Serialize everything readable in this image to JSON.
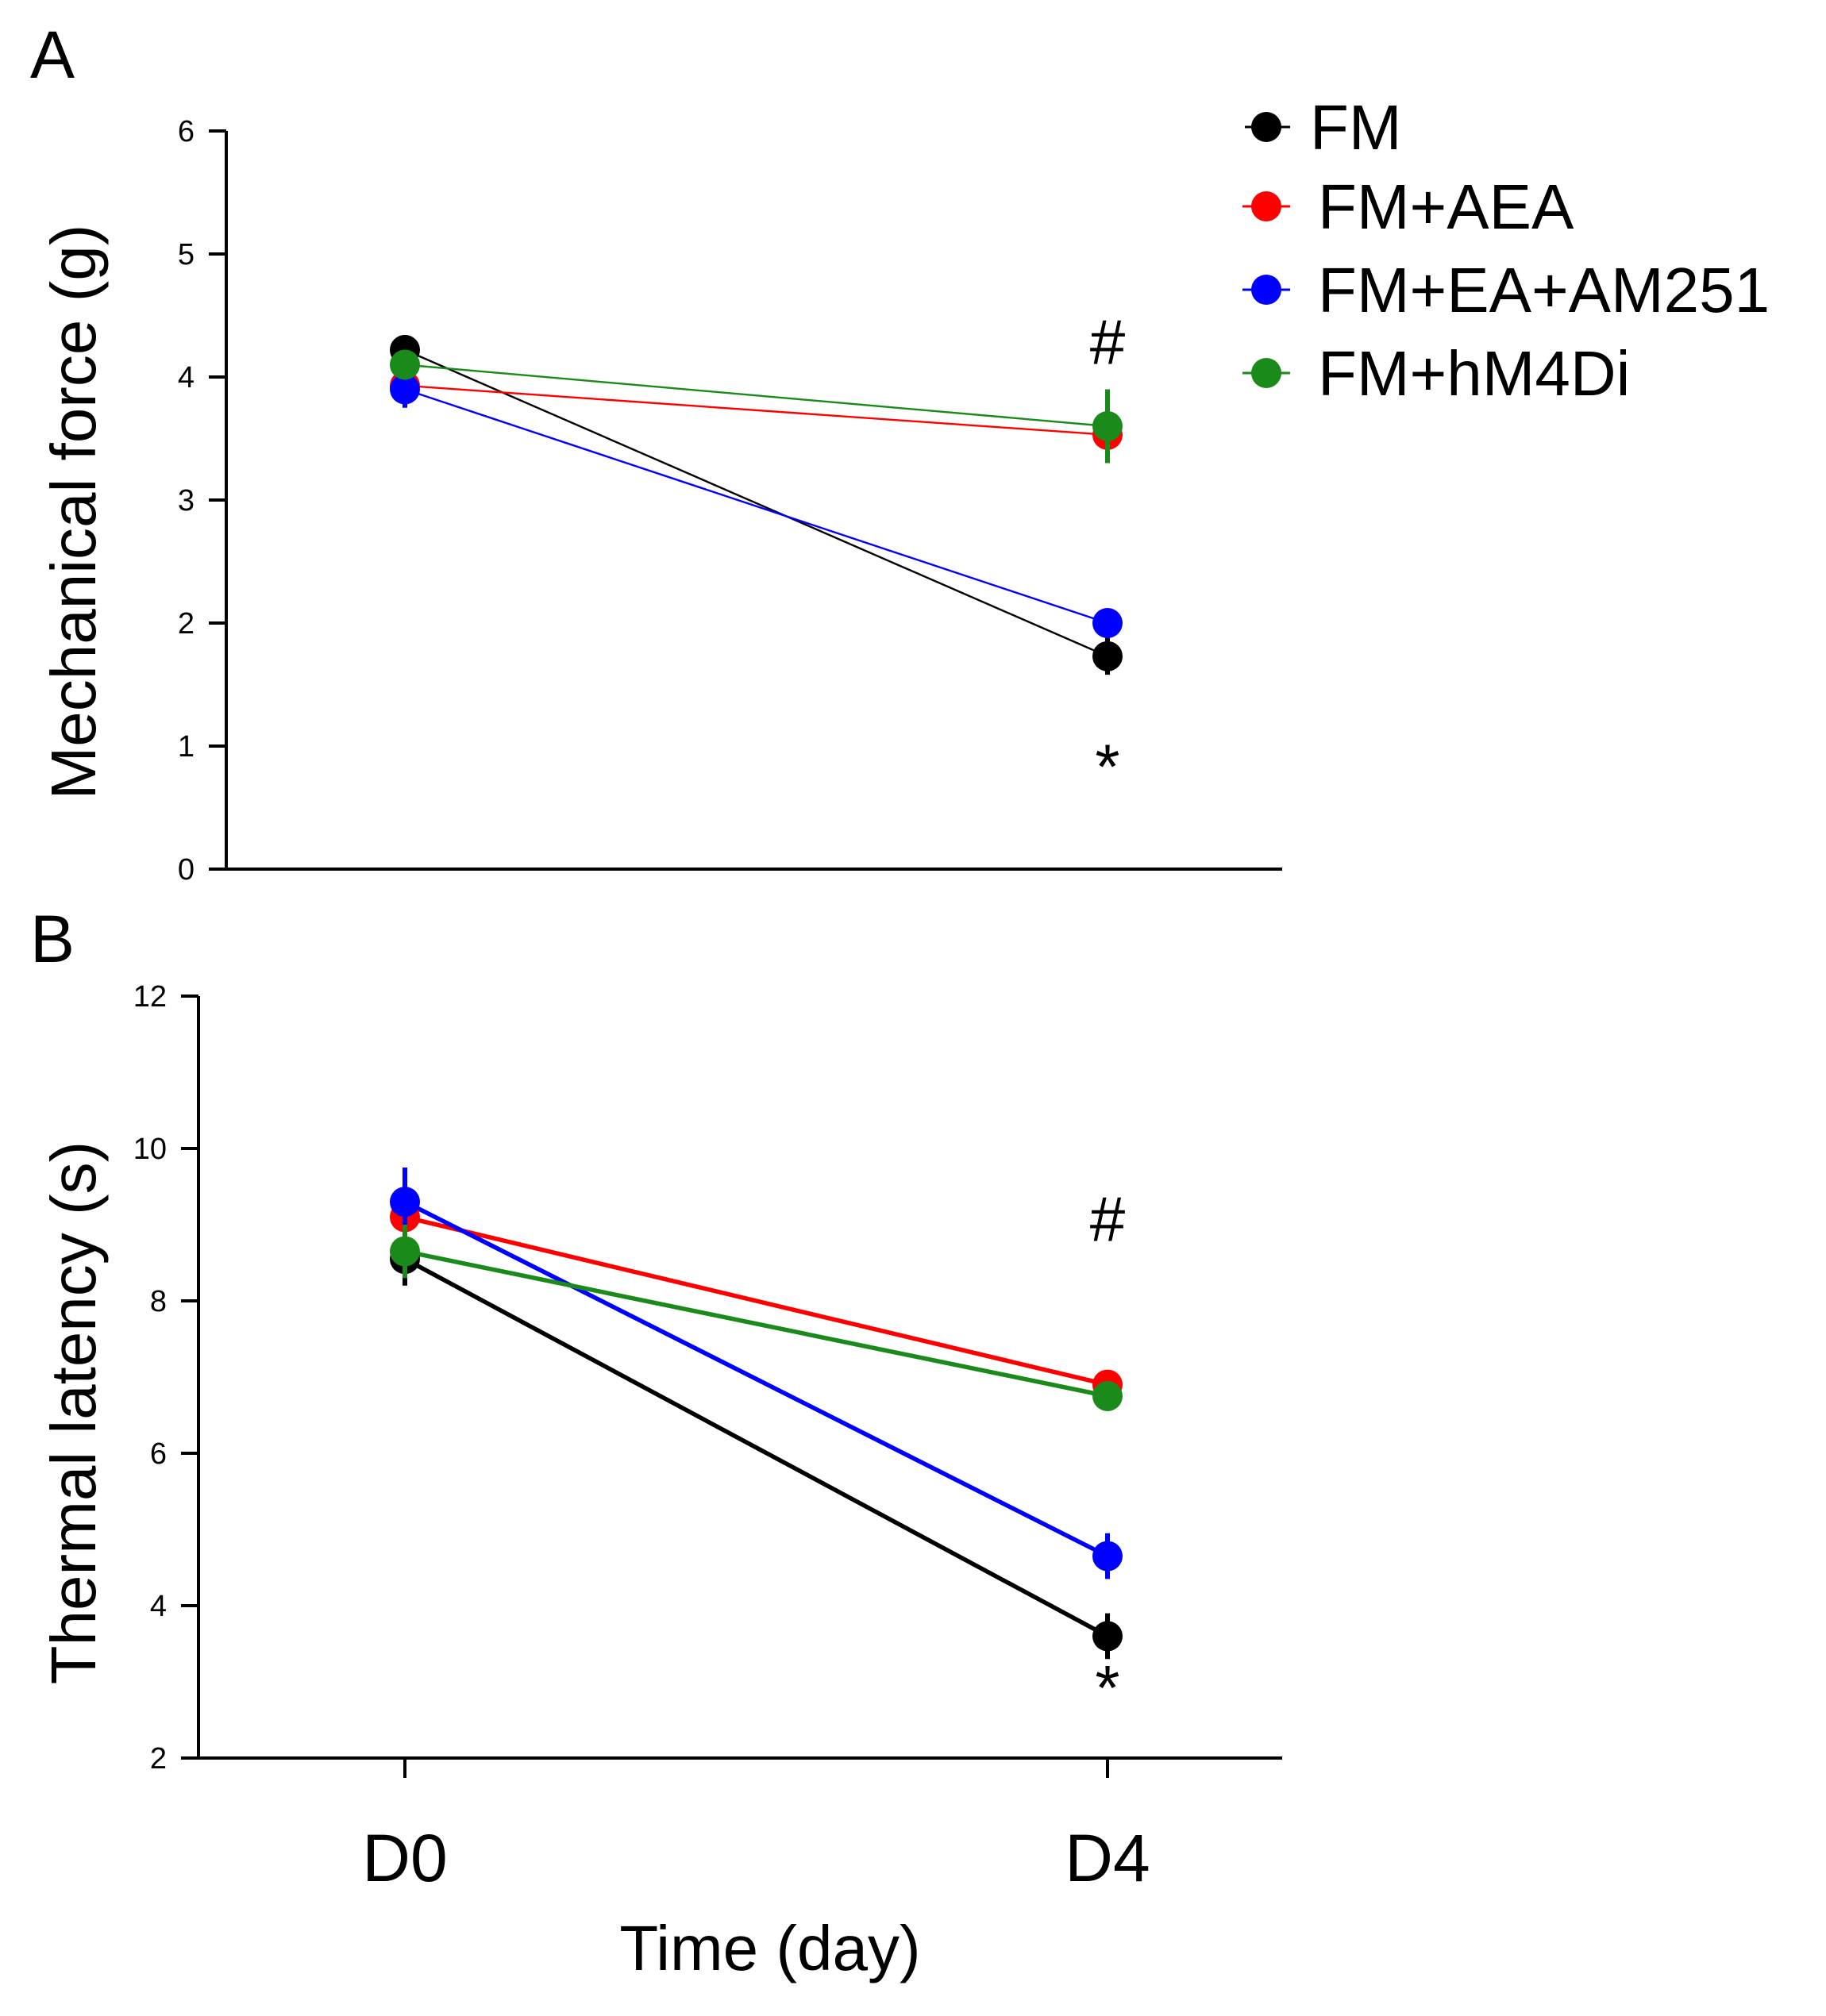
{
  "legend": [
    {
      "label": "FM",
      "color": "#000000"
    },
    {
      "label": "FM+AEA",
      "color": "#ff0000"
    },
    {
      "label": "FM+EA+AM251",
      "color": "#0000ff"
    },
    {
      "label": "FM+hM4Di",
      "color": "#1a8a1a"
    }
  ],
  "xlabel": "Time (day)",
  "chart_data": [
    {
      "type": "line",
      "panel": "A",
      "ylabel": "Mechanical force (g)",
      "categories": [
        "D0",
        "D4"
      ],
      "ylim": [
        0,
        6
      ],
      "yticks": [
        "0",
        "1",
        "2",
        "3",
        "4",
        "5",
        "6"
      ],
      "annotations": [
        {
          "text": "#",
          "category": "D4",
          "y": 4.3
        },
        {
          "text": "*",
          "category": "D4",
          "y": 0.85
        }
      ],
      "series": [
        {
          "name": "FM",
          "color": "#000000",
          "values": [
            4.22,
            1.73
          ],
          "errors": [
            0.08,
            0.15
          ]
        },
        {
          "name": "FM+AEA",
          "color": "#ff0000",
          "values": [
            3.93,
            3.53
          ],
          "errors": [
            0.06,
            0.2
          ]
        },
        {
          "name": "FM+EA+AM251",
          "color": "#0000ff",
          "values": [
            3.9,
            2.0
          ],
          "errors": [
            0.15,
            0.1
          ]
        },
        {
          "name": "FM+hM4Di",
          "color": "#1a8a1a",
          "values": [
            4.1,
            3.6
          ],
          "errors": [
            0.07,
            0.3
          ]
        }
      ]
    },
    {
      "type": "line",
      "panel": "B",
      "ylabel": "Thermal latency (s)",
      "categories": [
        "D0",
        "D4"
      ],
      "ylim": [
        2,
        12
      ],
      "yticks": [
        "2",
        "4",
        "6",
        "8",
        "10",
        "12"
      ],
      "annotations": [
        {
          "text": "#",
          "category": "D4",
          "y": 9.1
        },
        {
          "text": "*",
          "category": "D4",
          "y": 2.95
        }
      ],
      "series": [
        {
          "name": "FM",
          "color": "#000000",
          "values": [
            8.55,
            3.6
          ],
          "errors": [
            0.35,
            0.3
          ]
        },
        {
          "name": "FM+AEA",
          "color": "#ff0000",
          "values": [
            9.1,
            6.9
          ],
          "errors": [
            0.1,
            0.1
          ]
        },
        {
          "name": "FM+EA+AM251",
          "color": "#0000ff",
          "values": [
            9.3,
            4.65
          ],
          "errors": [
            0.45,
            0.3
          ]
        },
        {
          "name": "FM+hM4Di",
          "color": "#1a8a1a",
          "values": [
            8.65,
            6.75
          ],
          "errors": [
            0.35,
            0.12
          ]
        }
      ]
    }
  ]
}
